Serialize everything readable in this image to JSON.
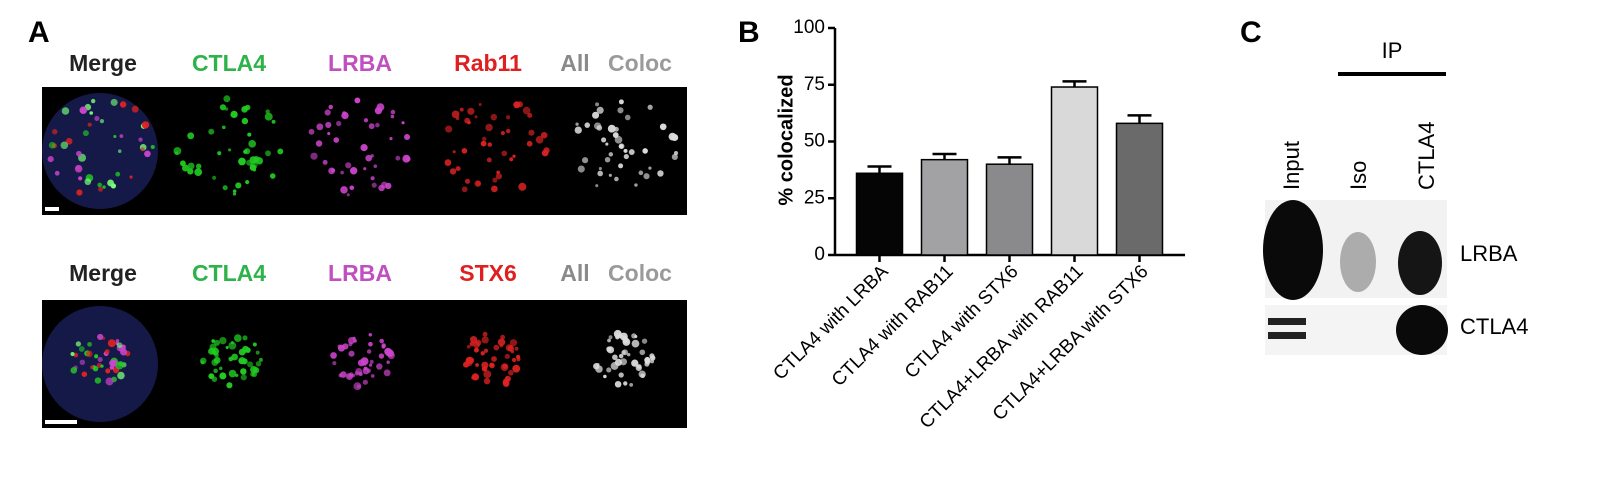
{
  "panel_a": {
    "label": "A",
    "rows": [
      {
        "headers": [
          "Merge",
          "CTLA4",
          "LRBA",
          "Rab11",
          "All",
          "Coloc"
        ]
      },
      {
        "headers": [
          "Merge",
          "CTLA4",
          "LRBA",
          "STX6",
          "All",
          "Coloc"
        ]
      }
    ]
  },
  "chart_data": {
    "type": "bar",
    "panel_label": "B",
    "y_label": "% colocalized",
    "categories": [
      "CTLA4 with LRBA",
      "CTLA4 with RAB11",
      "CTLA4 with STX6",
      "CTLA4+LRBA with RAB11",
      "CTLA4+LRBA with STX6"
    ],
    "values": [
      36,
      42,
      40,
      74,
      58
    ],
    "errors": [
      3,
      2.5,
      3,
      2.5,
      3.5
    ],
    "colors": [
      "#050505",
      "#a2a2a4",
      "#8a8a8c",
      "#d9d9d9",
      "#6a6a6a"
    ],
    "ylim": [
      0,
      100
    ],
    "yticks": [
      0,
      25,
      50,
      75,
      100
    ]
  },
  "panel_c": {
    "label": "C",
    "ip_label": "IP",
    "lanes": [
      "Input",
      "Iso",
      "CTLA4"
    ],
    "bands": [
      "LRBA",
      "CTLA4"
    ]
  }
}
